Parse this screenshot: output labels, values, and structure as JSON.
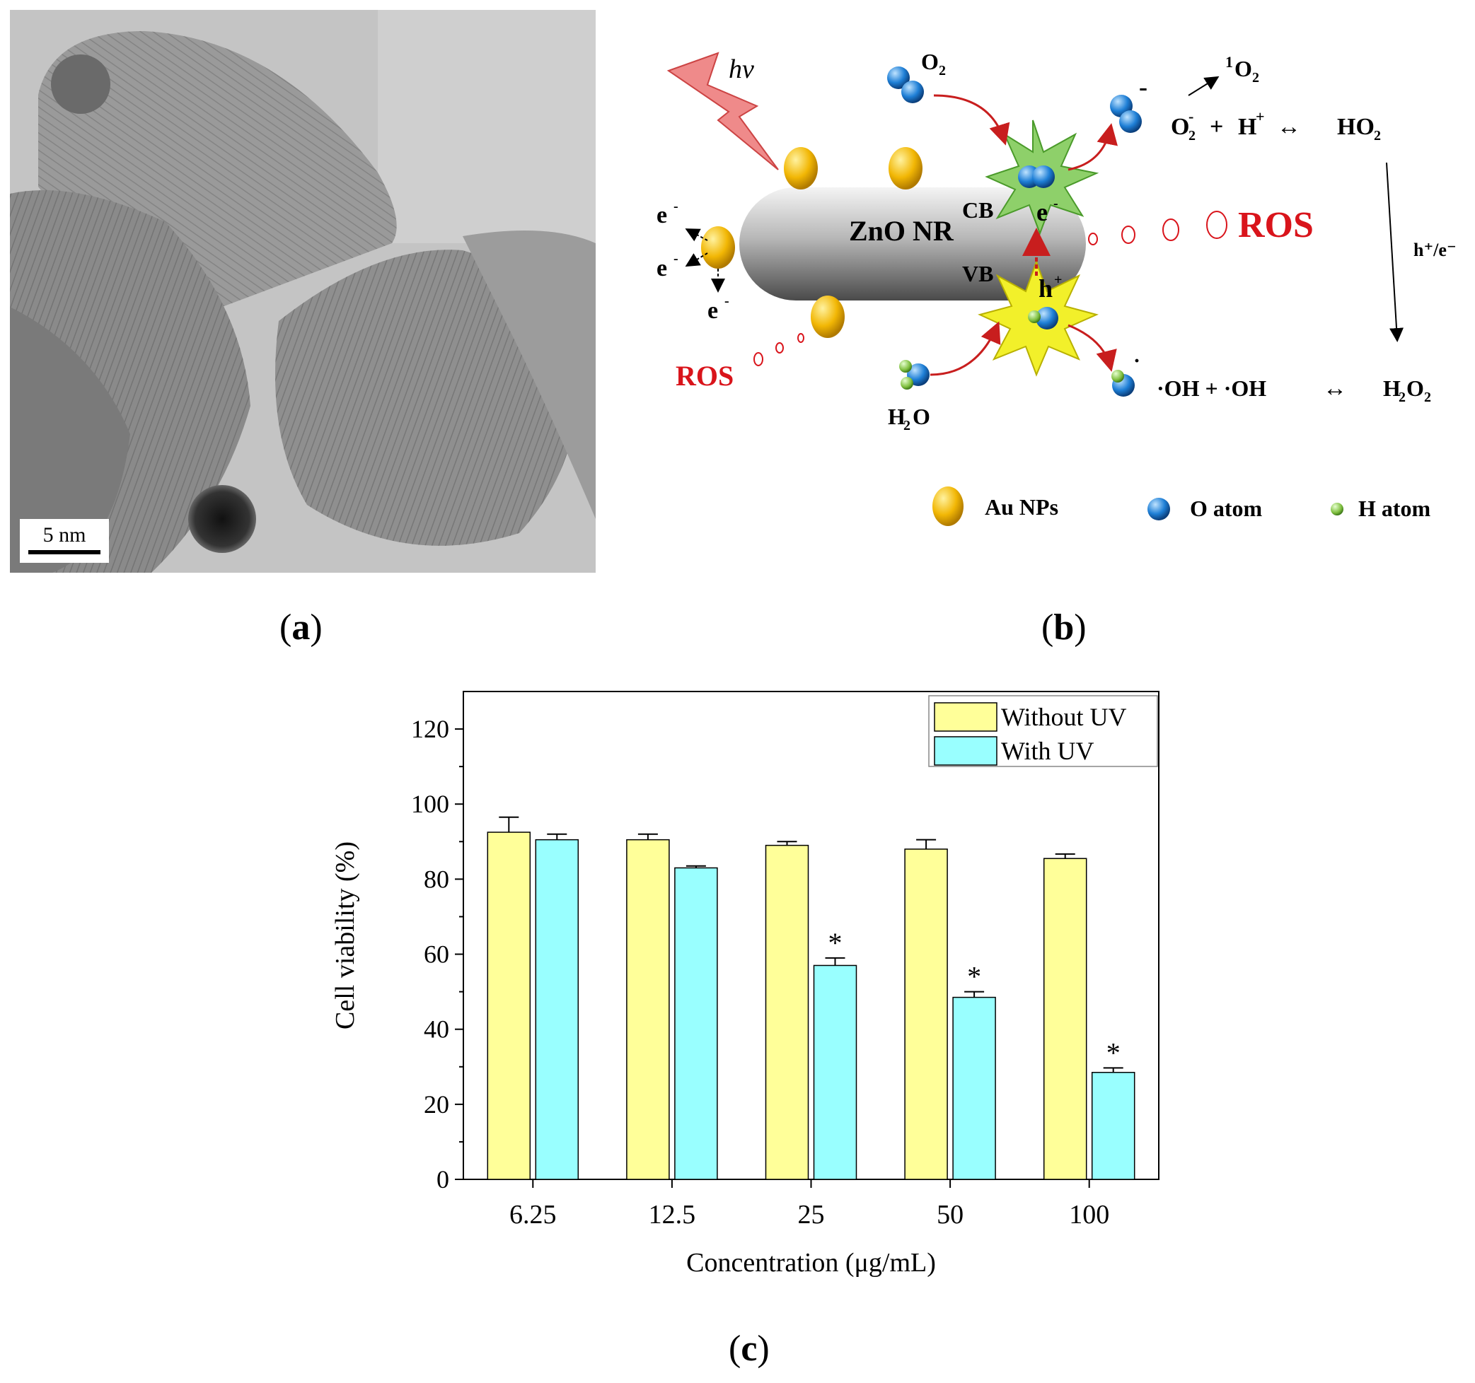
{
  "panels": {
    "a": {
      "label": "a",
      "scale_bar": "5 nm"
    },
    "b": {
      "label": "b",
      "hv": "hν",
      "zno": "ZnO NR",
      "cb": "CB",
      "vb": "VB",
      "e_minus": "e",
      "h_plus": "h",
      "ros": "ROS",
      "o2": "O",
      "singlet": "O",
      "h2o": "H",
      "h2o2": "H",
      "ho2": "HO",
      "oh_eq": "·OH + ·OH",
      "h_e": "h⁺/e⁻",
      "legend": {
        "au": "Au NPs",
        "o": "O atom",
        "h": "H atom"
      },
      "colors": {
        "au": "#f2b705",
        "o": "#1e7fd6",
        "h": "#7fbf3f",
        "ros": "#d9141b",
        "arrow": "#c81e1e",
        "cb_star": "#8ed06a",
        "vb_star": "#f2f02a"
      }
    },
    "c": {
      "label": "c"
    }
  },
  "chart_data": {
    "type": "bar",
    "categories": [
      "6.25",
      "12.5",
      "25",
      "50",
      "100"
    ],
    "series": [
      {
        "name": "Without UV",
        "color": "#ffff99",
        "values": [
          92.5,
          90.5,
          89,
          88,
          85.5
        ],
        "errors": [
          4,
          1.5,
          1,
          2.5,
          1.2
        ]
      },
      {
        "name": "With UV",
        "color": "#99ffff",
        "values": [
          90.5,
          83,
          57,
          48.5,
          28.5
        ],
        "errors": [
          1.5,
          0.5,
          2,
          1.5,
          1.2
        ]
      }
    ],
    "significance": [
      false,
      false,
      true,
      true,
      true
    ],
    "xlabel": "Concentration (μg/mL)",
    "ylabel": "Cell viability (%)",
    "ylim": [
      0,
      130
    ],
    "yticks": [
      0,
      20,
      40,
      60,
      80,
      100,
      120
    ],
    "legend": "top-right",
    "grid": false
  }
}
